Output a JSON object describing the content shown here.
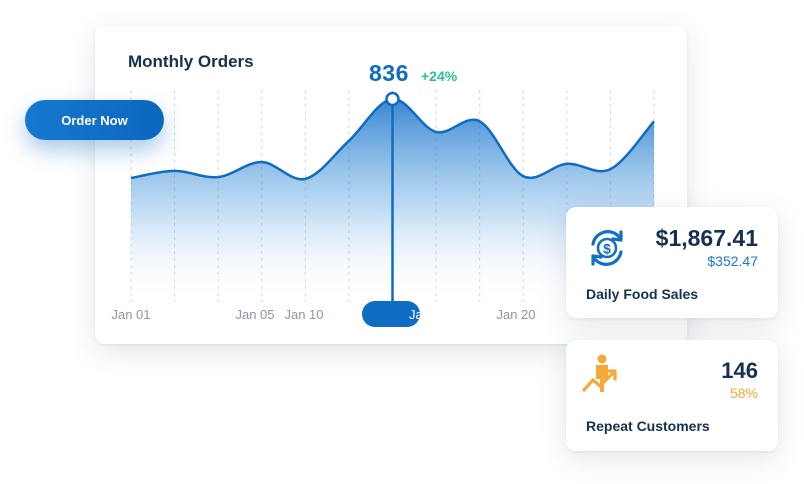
{
  "chart_data": {
    "type": "area",
    "title": "Monthly Orders",
    "x_tick_labels": [
      "Jan 01",
      "Jan 05",
      "Jan 10",
      "Jan 15",
      "Jan 20"
    ],
    "series": [
      {
        "values": [
          390,
          430,
          395,
          480,
          385,
          600,
          836,
          650,
          710,
          400,
          470,
          440,
          710
        ]
      }
    ],
    "highlight": {
      "value": "836",
      "change": "+24%"
    },
    "color": "#0e6cc2"
  },
  "cta": {
    "label": "Order Now"
  },
  "sales": {
    "value": "$1,867.41",
    "sub_value": "$352.47",
    "label": "Daily Food Sales",
    "icon": "dollar-refresh-icon"
  },
  "customers": {
    "value": "146",
    "sub_value": "58%",
    "label": "Repeat Customers",
    "icon": "person-growth-icon"
  },
  "colors": {
    "primary": "#0e6cc2",
    "positive": "#2fbf97",
    "accent": "#f5a93a",
    "text": "#15314f"
  }
}
